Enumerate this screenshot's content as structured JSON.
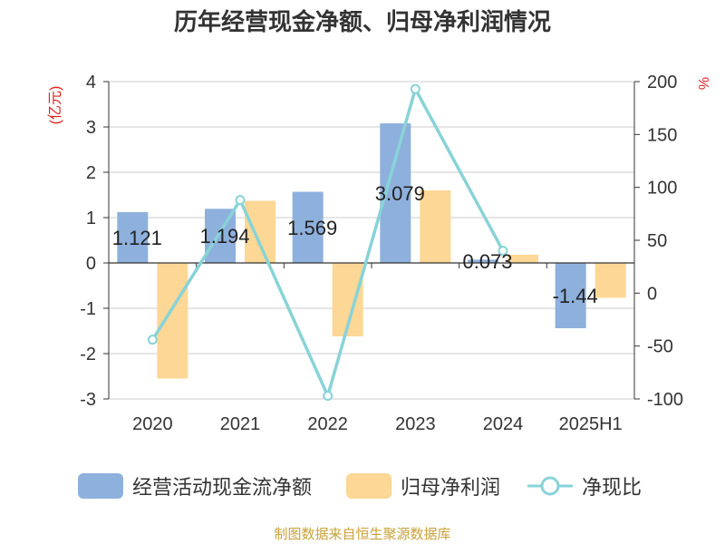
{
  "title": "历年经营现金净额、归母净利润情况",
  "source": "制图数据来自恒生聚源数据库",
  "left_unit": "(亿元)",
  "right_unit": "%",
  "colors": {
    "cash": "#8eb0dc",
    "profit": "#fdd795",
    "ratio": "#88d3d8",
    "grid": "#cccccc",
    "unit": "#e02020",
    "source": "#c8a23a"
  },
  "chart_data": {
    "type": "bar",
    "title": "历年经营现金净额、归母净利润情况",
    "categories": [
      "2020",
      "2021",
      "2022",
      "2023",
      "2024",
      "2025H1"
    ],
    "series": [
      {
        "name": "经营活动现金流净额",
        "type": "bar",
        "axis": "left",
        "values": [
          1.121,
          1.194,
          1.569,
          3.079,
          0.073,
          -1.44
        ],
        "labels": [
          "1.121",
          "1.194",
          "1.569",
          "3.079",
          "0.073",
          "-1.44"
        ]
      },
      {
        "name": "归母净利润",
        "type": "bar",
        "axis": "left",
        "values": [
          -2.55,
          1.37,
          -1.62,
          1.6,
          0.18,
          -0.77
        ]
      },
      {
        "name": "净现比",
        "type": "line",
        "axis": "right",
        "values": [
          -44,
          88,
          -97,
          193,
          40,
          null
        ]
      }
    ],
    "y_left": {
      "min": -3,
      "max": 4,
      "ticks": [
        "4",
        "3",
        "2",
        "1",
        "0",
        "-1",
        "-2",
        "-3"
      ],
      "unit": "(亿元)"
    },
    "y_right": {
      "min": -100,
      "max": 200,
      "ticks": [
        "200",
        "150",
        "100",
        "50",
        "0",
        "-50",
        "-100"
      ],
      "unit": "%"
    },
    "grid": true,
    "legend_position": "bottom"
  }
}
